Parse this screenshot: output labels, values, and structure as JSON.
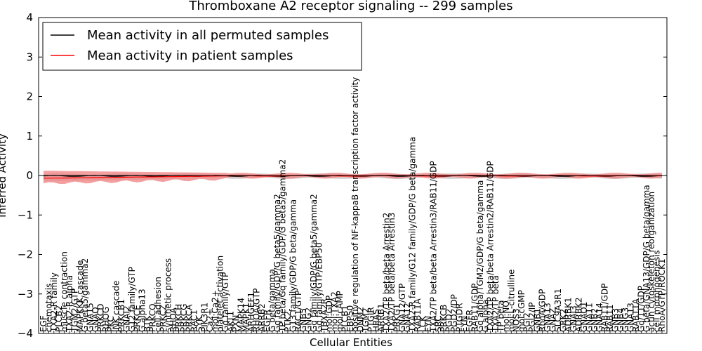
{
  "chart_data": {
    "type": "line",
    "title": "Thromboxane A2 receptor signaling -- 299 samples",
    "xlabel": "Cellular Entities",
    "ylabel": "Inferred Activity",
    "ylim": [
      -4,
      4
    ],
    "yticks": [
      "4",
      "3",
      "2",
      "1",
      "0",
      "−1",
      "−2",
      "−3",
      "−4"
    ],
    "grid": false,
    "legend_position": "top-left",
    "series": [
      {
        "name": "Mean activity in all permuted samples",
        "color": "#000000"
      },
      {
        "name": "Mean activity in patient samples",
        "color": "#ff0000"
      }
    ],
    "band_colors": {
      "patient": "#f08080",
      "permuted": "#c8c8c8"
    },
    "entities": [
      "EGF",
      "chemotaxis",
      "TXA2-R family",
      "PLCB2",
      "muscle contraction",
      "TXA2-R alpha",
      "TGM2/GTP",
      "MAPKKK cascade",
      "G beta5/gamma2",
      "GNA15",
      "GNAQ",
      "PRKCD",
      "RHOG",
      "PKC",
      "JNK cascade",
      "PRKCB1",
      "GNAI2",
      "G12 family/GTP",
      "PRKCE",
      "G alpha13",
      "BTK",
      "PRKCQ",
      "cell adhesion",
      "PRKCZ",
      "synthetic process",
      "RHOA",
      "PRKCH",
      "PRKCG",
      "PRKCA",
      "RAC1",
      "SYK",
      "PIK3R1",
      "Ca2+",
      "mol:Ca2+",
      "platelet activation",
      "Gq family/GTP",
      "AKT1",
      "PXN",
      "MAPK14",
      "MAPK1",
      "ARHGEF1",
      "RHOA/GTP",
      "ARRB2",
      "EGFR",
      "G beta/gamma",
      "Gq family/GDP/G beta5/gamma2",
      "TP beta/Gq family/GDP/G beta5/gamma2",
      "PTK2",
      "G13 family/GDP/G beta/gamma",
      "RAC1/GTP",
      "GNB5",
      "GNG2",
      "Gq family/GDP/G beta5/gamma2",
      "Gq family/GTP/EBP50",
      "TBXA2R",
      "mol:GDP",
      "mol:TXA2",
      "mol:cAMP",
      "PLCB1",
      "EBP50",
      "positive regulation of NF-kappaB transcription factor activity",
      "DNM2",
      "TGM2",
      "PTGIR",
      "HRAS",
      "ARRB1",
      "TXA2/TP beta/beta Arrestin2",
      "TXA2/TP beta/beta Arrestin3",
      "PRKG1",
      "GNA12/GTP",
      "GNA12",
      "TXA2-R family/G12 family/GDP/G beta/gamma",
      "RAB11A",
      "LCK",
      "FYN",
      "TXA2/TP beta/beta Arrestin3/RAB11/GDP",
      "SRC",
      "PRKCB",
      "PGD2",
      "PGD2/DP",
      "PTGDR",
      "FYN",
      "EGFR",
      "RAB11/GDP",
      "Gq alpha/TGM2/GDP/G beta/gamma",
      "G alpha",
      "TXA2/TP beta/beta Arrestin2/RAB11/GDP",
      "TXA2/TP beta",
      "TP beta",
      "mol:NO",
      "mol:L-citrulline",
      "NOS3",
      "mol:cGMP",
      "PGI2",
      "PGI2/IP",
      "GNB1",
      "RhoA/GDP",
      "GNA13",
      "GNAZ",
      "SLC9A3R1",
      "GRK2",
      "ADRBK1",
      "GNAI3",
      "ADRBK2",
      "GNAO1",
      "GNA11",
      "GNB2",
      "GNA14",
      "RAB11/GDP",
      "RAB11",
      "GNB3",
      "GNB4",
      "GNG3",
      "GNA13",
      "RAB11A",
      "Gq/11/GDP",
      "G beta/GNA13/GDP/G beta/gamma",
      "actin cytoskeleton reorganization",
      "cell morphogenesis",
      "RhoA/GTP/ROCK1"
    ]
  }
}
